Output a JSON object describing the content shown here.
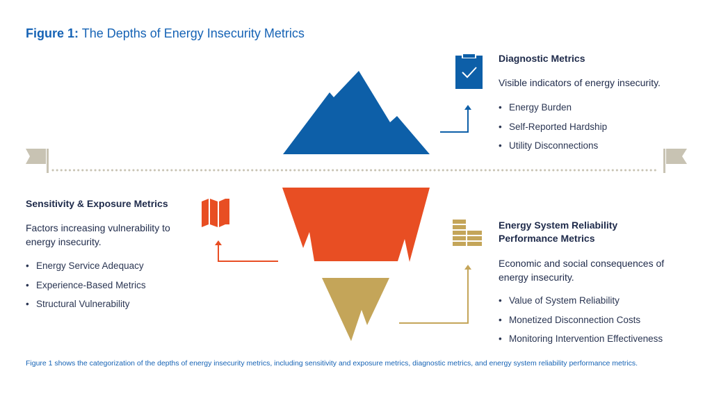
{
  "figure": {
    "label": "Figure 1:",
    "title": "The Depths of Energy Insecurity Metrics",
    "caption": "Figure 1 shows the categorization of the depths of energy insecurity metrics, including sensitivity and exposure metrics, diagnostic metrics, and energy system reliability performance metrics."
  },
  "diagnostic": {
    "title": "Diagnostic Metrics",
    "subtitle": "Visible indicators of energy insecurity.",
    "items": [
      "Energy Burden",
      "Self-Reported Hardship",
      "Utility Disconnections"
    ],
    "icon": "clipboard-check-icon",
    "color": "#0d5fa8"
  },
  "sensitivity": {
    "title": "Sensitivity & Exposure Metrics",
    "subtitle_lines": [
      "Factors increasing vulnerability to",
      "energy insecurity."
    ],
    "items": [
      "Energy Service Adequacy",
      "Experience-Based Metrics",
      "Structural Vulnerability"
    ],
    "icon": "map-icon",
    "color": "#e84e23"
  },
  "reliability": {
    "title_lines": [
      "Energy System Reliability",
      "Performance Metrics"
    ],
    "subtitle_lines": [
      "Economic and social consequences of",
      "energy insecurity."
    ],
    "items": [
      "Value of System Reliability",
      "Monetized Disconnection Costs",
      "Monitoring Intervention Effectiveness"
    ],
    "icon": "stacked-bars-icon",
    "color": "#c4a559"
  },
  "colors": {
    "waterline": "#c8c3b3",
    "flag": "#c8c3b3",
    "title": "#1663b5"
  }
}
